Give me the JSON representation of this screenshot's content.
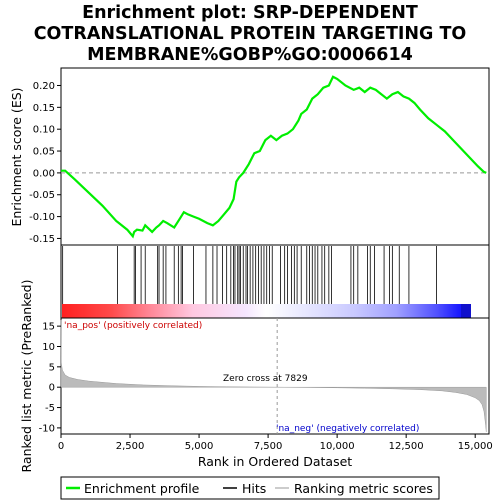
{
  "chart_data": [
    {
      "type": "line",
      "title": "Enrichment plot: SRP-DEPENDENT COTRANSLATIONAL PROTEIN TARGETING TO MEMBRANE%GOBP%GO:0006614",
      "title_lines": [
        "Enrichment plot: SRP-DEPENDENT",
        "COTRANSLATIONAL PROTEIN TARGETING TO",
        "MEMBRANE%GOBP%GO:0006614"
      ],
      "ylabel": "Enrichment score (ES)",
      "xlim": [
        0,
        15500
      ],
      "ylim": [
        -0.165,
        0.24
      ],
      "yticks": [
        -0.15,
        -0.1,
        -0.05,
        0.0,
        0.05,
        0.1,
        0.15,
        0.2
      ],
      "ytick_labels": [
        "-0.15",
        "-0.10",
        "-0.05",
        "0.00",
        "0.05",
        "0.10",
        "0.15",
        "0.20"
      ],
      "line_color": "#00ee00",
      "series": [
        {
          "name": "Enrichment profile",
          "x": [
            0,
            150,
            500,
            1000,
            1500,
            2000,
            2100,
            2400,
            2600,
            2650,
            2750,
            2950,
            3050,
            3300,
            3450,
            3550,
            3700,
            3850,
            4100,
            4300,
            4450,
            4600,
            4800,
            5000,
            5300,
            5500,
            5700,
            5900,
            6100,
            6250,
            6350,
            6450,
            6600,
            6800,
            7000,
            7200,
            7400,
            7600,
            7800,
            8000,
            8200,
            8400,
            8600,
            8700,
            8900,
            9100,
            9300,
            9500,
            9700,
            9850,
            10000,
            10300,
            10600,
            10800,
            11000,
            11200,
            11400,
            11600,
            11800,
            12000,
            12200,
            12400,
            12600,
            12800,
            13000,
            13300,
            13600,
            13900,
            14200,
            14500,
            14800,
            15100,
            15300,
            15400
          ],
          "y": [
            0.005,
            0.005,
            -0.015,
            -0.045,
            -0.075,
            -0.11,
            -0.115,
            -0.13,
            -0.145,
            -0.135,
            -0.13,
            -0.132,
            -0.12,
            -0.135,
            -0.125,
            -0.12,
            -0.11,
            -0.115,
            -0.125,
            -0.105,
            -0.09,
            -0.095,
            -0.1,
            -0.105,
            -0.115,
            -0.12,
            -0.11,
            -0.095,
            -0.08,
            -0.06,
            -0.02,
            -0.01,
            0.0,
            0.02,
            0.045,
            0.05,
            0.075,
            0.085,
            0.075,
            0.085,
            0.09,
            0.1,
            0.12,
            0.135,
            0.145,
            0.17,
            0.18,
            0.195,
            0.2,
            0.22,
            0.215,
            0.2,
            0.19,
            0.195,
            0.185,
            0.195,
            0.19,
            0.18,
            0.17,
            0.18,
            0.185,
            0.175,
            0.17,
            0.16,
            0.145,
            0.125,
            0.11,
            0.095,
            0.075,
            0.055,
            0.035,
            0.015,
            0.003,
            0.0
          ]
        }
      ]
    },
    {
      "type": "hits",
      "name": "Hits",
      "hit_positions": [
        60,
        2050,
        2650,
        2700,
        2900,
        3050,
        3500,
        3550,
        3700,
        3800,
        4100,
        4250,
        4350,
        4400,
        4800,
        5250,
        5500,
        5650,
        5850,
        6000,
        6150,
        6250,
        6300,
        6400,
        6450,
        6500,
        6600,
        6700,
        6750,
        6850,
        6950,
        7050,
        7150,
        7250,
        7350,
        7450,
        7550,
        7650,
        7950,
        8100,
        8200,
        8350,
        8450,
        8550,
        8700,
        8900,
        9000,
        9100,
        9200,
        9300,
        9450,
        9550,
        9700,
        9800,
        10500,
        10600,
        10750,
        11100,
        11200,
        11350,
        11700,
        11900,
        12000,
        12250,
        12600,
        13600
      ],
      "heat_colors": [
        "#ff0000",
        "#ffb0c0",
        "#e8e8ff",
        "#0000ff"
      ]
    },
    {
      "type": "area",
      "ylabel": "Ranked list metric (PreRanked)",
      "xlabel": "Rank in Ordered Dataset",
      "xlim": [
        0,
        15500
      ],
      "ylim": [
        -11.5,
        17
      ],
      "yticks": [
        -10,
        -5,
        0,
        5,
        10,
        15
      ],
      "ytick_labels": [
        "-10",
        "-5",
        "0",
        "5",
        "10",
        "15"
      ],
      "xticks": [
        0,
        2500,
        5000,
        7500,
        10000,
        12500,
        15000
      ],
      "xtick_labels": [
        "0",
        "2,500",
        "5,000",
        "7,500",
        "10,000",
        "12,500",
        "15,000"
      ],
      "series": [
        {
          "name": "Ranking metric scores",
          "x": [
            0,
            10,
            50,
            150,
            300,
            600,
            1000,
            2000,
            3000,
            4000,
            5000,
            6000,
            7000,
            7829,
            9000,
            10000,
            11000,
            12000,
            13000,
            13800,
            14300,
            14700,
            15000,
            15150,
            15250,
            15320,
            15380,
            15400
          ],
          "y": [
            16.5,
            6.0,
            4.2,
            3.0,
            2.4,
            1.9,
            1.5,
            0.9,
            0.55,
            0.35,
            0.2,
            0.1,
            0.04,
            0.0,
            -0.07,
            -0.15,
            -0.25,
            -0.4,
            -0.6,
            -0.9,
            -1.3,
            -1.8,
            -2.6,
            -3.3,
            -4.3,
            -6.0,
            -9.5,
            -11.0
          ]
        }
      ],
      "annotations": {
        "pos_label": "'na_pos' (positively correlated)",
        "neg_label": "'na_neg' (negatively correlated)",
        "zero_cross": "Zero cross at 7829",
        "zero_cross_rank": 7829,
        "pos_color": "#cc0000",
        "neg_color": "#0000cc"
      }
    }
  ],
  "legend": {
    "items": [
      {
        "label": "Enrichment profile",
        "color": "#00ee00"
      },
      {
        "label": "Hits",
        "color": "#000000"
      },
      {
        "label": "Ranking metric scores",
        "color": "#bbbbbb"
      }
    ]
  }
}
